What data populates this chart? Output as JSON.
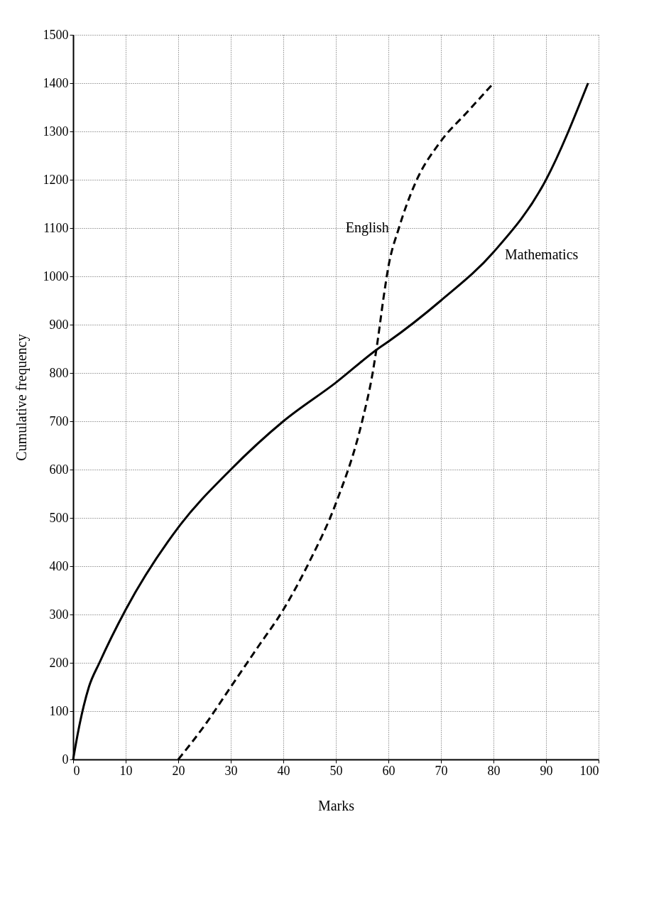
{
  "chart_data": {
    "type": "line",
    "xlabel": "Marks",
    "ylabel": "Cumulative frequency",
    "xlim": [
      0,
      100
    ],
    "ylim": [
      0,
      1500
    ],
    "xticks": [
      0,
      10,
      20,
      30,
      40,
      50,
      60,
      70,
      80,
      90,
      100
    ],
    "yticks": [
      0,
      100,
      200,
      300,
      400,
      500,
      600,
      700,
      800,
      900,
      1000,
      1100,
      1200,
      1300,
      1400,
      1500
    ],
    "grid": true,
    "legend": false,
    "marker": "none",
    "series": [
      {
        "name": "Mathematics",
        "color": "#000000",
        "line_style": "solid",
        "x": [
          0,
          1,
          2,
          3,
          5,
          10,
          20,
          30,
          40,
          50,
          58,
          60,
          70,
          80,
          90,
          98
        ],
        "values": [
          0,
          60,
          110,
          150,
          200,
          310,
          480,
          600,
          700,
          780,
          850,
          865,
          950,
          1050,
          1200,
          1400
        ]
      },
      {
        "name": "English",
        "color": "#000000",
        "line_style": "dashed",
        "x": [
          20,
          25,
          30,
          35,
          40,
          45,
          50,
          55,
          57,
          58,
          59,
          60,
          62,
          65,
          70,
          75,
          80
        ],
        "values": [
          0,
          70,
          150,
          230,
          310,
          410,
          530,
          700,
          800,
          870,
          950,
          1020,
          1100,
          1190,
          1280,
          1340,
          1400
        ]
      }
    ]
  }
}
